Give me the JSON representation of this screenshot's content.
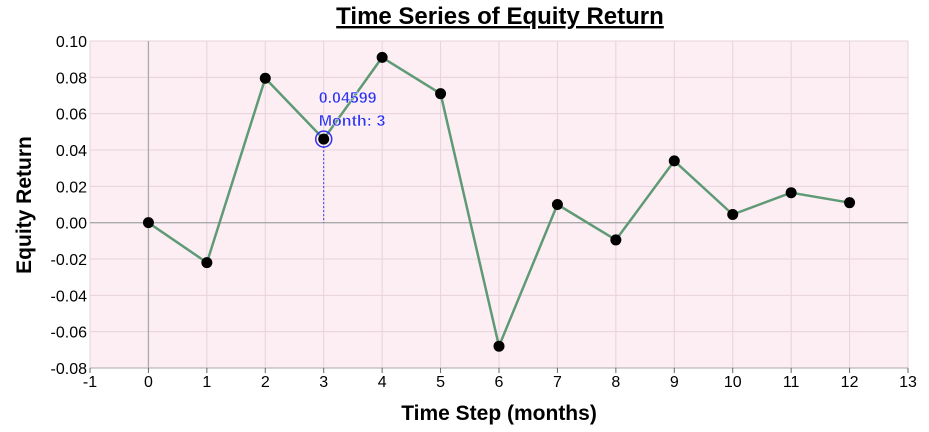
{
  "chart_data": {
    "type": "line",
    "title": "Time Series of Equity Return",
    "xlabel": "Time Step (months)",
    "ylabel": "Equity Return",
    "xlim": [
      -1,
      13
    ],
    "ylim": [
      -0.08,
      0.1
    ],
    "x_ticks": [
      -1,
      0,
      1,
      2,
      3,
      4,
      5,
      6,
      7,
      8,
      9,
      10,
      11,
      12,
      13
    ],
    "x_tick_labels": [
      "-1",
      "0",
      "1",
      "2",
      "3",
      "4",
      "5",
      "6",
      "7",
      "8",
      "9",
      "10",
      "11",
      "12",
      "13"
    ],
    "y_ticks": [
      -0.08,
      -0.06,
      -0.04,
      -0.02,
      0.0,
      0.02,
      0.04,
      0.06,
      0.08,
      0.1
    ],
    "y_tick_labels": [
      "-0.08",
      "-0.06",
      "-0.04",
      "-0.02",
      "0.00",
      "0.02",
      "0.04",
      "0.06",
      "0.08",
      "0.10"
    ],
    "grid": true,
    "x": [
      0,
      1,
      2,
      3,
      4,
      5,
      6,
      7,
      8,
      9,
      10,
      11,
      12
    ],
    "values": [
      0.0,
      -0.022,
      0.0795,
      0.04599,
      0.091,
      0.071,
      -0.068,
      0.01,
      -0.0095,
      0.034,
      0.0045,
      0.0165,
      0.011
    ],
    "highlight": {
      "index": 3,
      "value_label": "0.04599",
      "month_label": "Month: 3"
    }
  },
  "colors": {
    "plot_background": "#fdeef3",
    "grid": "#e6d3db",
    "zero_axes": "#aaaaaa",
    "line": "#5f9a77",
    "marker": "#000000",
    "highlight": "#3333ee"
  }
}
